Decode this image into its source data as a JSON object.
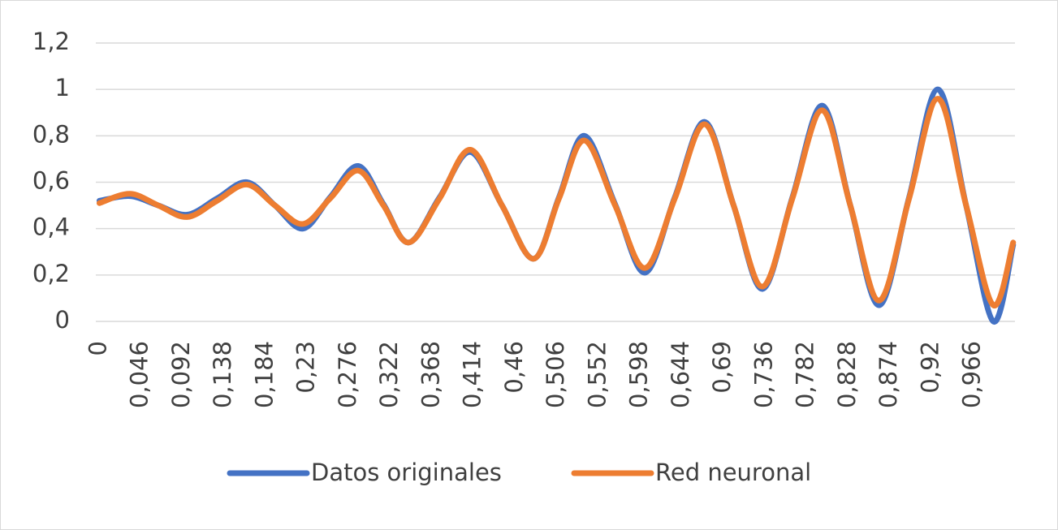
{
  "chart_data": {
    "type": "line",
    "x": [
      0,
      0.034,
      0.065,
      0.097,
      0.13,
      0.163,
      0.194,
      0.225,
      0.255,
      0.286,
      0.314,
      0.342,
      0.376,
      0.41,
      0.445,
      0.48,
      0.508,
      0.536,
      0.57,
      0.603,
      0.636,
      0.669,
      0.701,
      0.733,
      0.766,
      0.799,
      0.83,
      0.862,
      0.895,
      0.927,
      0.958,
      0.988,
      1.01
    ],
    "series": [
      {
        "name": "Datos originales",
        "color": "#4472c4",
        "values": [
          0.52,
          0.54,
          0.5,
          0.46,
          0.53,
          0.6,
          0.5,
          0.4,
          0.535,
          0.67,
          0.505,
          0.34,
          0.535,
          0.73,
          0.5,
          0.27,
          0.535,
          0.8,
          0.505,
          0.21,
          0.535,
          0.86,
          0.5,
          0.14,
          0.535,
          0.93,
          0.5,
          0.07,
          0.535,
          1.0,
          0.5,
          0.0,
          0.33
        ]
      },
      {
        "name": "Red neuronal",
        "color": "#ed7d31",
        "values": [
          0.51,
          0.55,
          0.5,
          0.45,
          0.52,
          0.59,
          0.5,
          0.42,
          0.53,
          0.65,
          0.5,
          0.34,
          0.53,
          0.74,
          0.5,
          0.27,
          0.53,
          0.78,
          0.5,
          0.23,
          0.53,
          0.85,
          0.5,
          0.15,
          0.53,
          0.91,
          0.5,
          0.09,
          0.53,
          0.96,
          0.5,
          0.07,
          0.34
        ]
      }
    ],
    "xlim": [
      -0.004,
      1.012
    ],
    "xticks": [
      0,
      {
        "value": 0.046,
        "label": "0,046"
      },
      {
        "value": 0.092,
        "label": "0,092"
      },
      {
        "value": 0.138,
        "label": "0,138"
      },
      {
        "value": 0.184,
        "label": "0,184"
      },
      {
        "value": 0.23,
        "label": "0,23"
      },
      {
        "value": 0.276,
        "label": "0,276"
      },
      {
        "value": 0.322,
        "label": "0,322"
      },
      {
        "value": 0.368,
        "label": "0,368"
      },
      {
        "value": 0.414,
        "label": "0,414"
      },
      {
        "value": 0.46,
        "label": "0,46"
      },
      {
        "value": 0.506,
        "label": "0,506"
      },
      {
        "value": 0.552,
        "label": "0,552"
      },
      {
        "value": 0.598,
        "label": "0,598"
      },
      {
        "value": 0.644,
        "label": "0,644"
      },
      {
        "value": 0.69,
        "label": "0,69"
      },
      {
        "value": 0.736,
        "label": "0,736"
      },
      {
        "value": 0.782,
        "label": "0,782"
      },
      {
        "value": 0.828,
        "label": "0,828"
      },
      {
        "value": 0.874,
        "label": "0,874"
      },
      {
        "value": 0.92,
        "label": "0,92"
      },
      {
        "value": 0.966,
        "label": "0,966"
      }
    ],
    "ylim": [
      0,
      1.2
    ],
    "yticks": [
      0,
      {
        "value": 0.2,
        "label": "0,2"
      },
      {
        "value": 0.4,
        "label": "0,4"
      },
      {
        "value": 0.6,
        "label": "0,6"
      },
      {
        "value": 0.8,
        "label": "0,8"
      },
      1,
      {
        "value": 1.2,
        "label": "1,2"
      }
    ],
    "grid": true,
    "legend": "bottom"
  }
}
